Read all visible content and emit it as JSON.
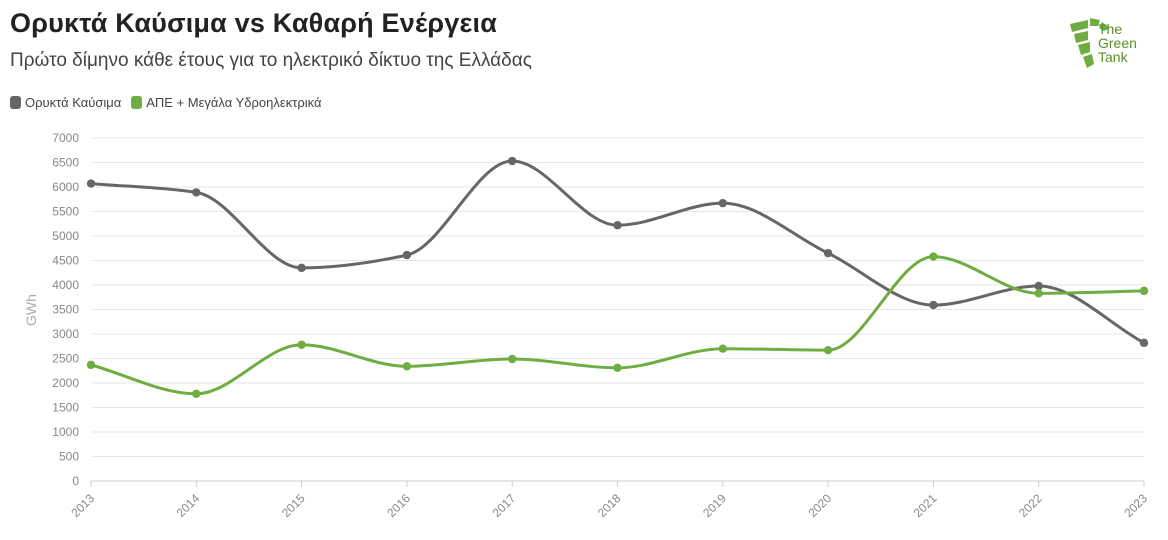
{
  "header": {
    "title": "Ορυκτά Καύσιμα vs Καθαρή Ενέργεια",
    "subtitle": "Πρώτο δίμηνο κάθε έτους για το ηλεκτρικό δίκτυο της Ελλάδας"
  },
  "logo": {
    "line1": "The",
    "line2": "Green",
    "line3": "Tank"
  },
  "colors": {
    "fossil": "#666666",
    "renewables": "#6fad43",
    "grid": "#e6e6e6",
    "axis_text": "#888888"
  },
  "chart_data": {
    "type": "line",
    "title": "Ορυκτά Καύσιμα vs Καθαρή Ενέργεια",
    "subtitle": "Πρώτο δίμηνο κάθε έτους για το ηλεκτρικό δίκτυο της Ελλάδας",
    "xlabel": "",
    "ylabel": "GWh",
    "x": [
      "2013",
      "2014",
      "2015",
      "2016",
      "2017",
      "2018",
      "2019",
      "2020",
      "2021",
      "2022",
      "2023"
    ],
    "ylim": [
      0,
      7000
    ],
    "yticks": [
      0,
      500,
      1000,
      1500,
      2000,
      2500,
      3000,
      3500,
      4000,
      4500,
      5000,
      5500,
      6000,
      6500,
      7000
    ],
    "grid": true,
    "legend": "top-left",
    "series": [
      {
        "name": "Ορυκτά Καύσιμα",
        "color": "#666666",
        "values": [
          6070,
          5890,
          4350,
          4610,
          6530,
          5220,
          5670,
          4650,
          3590,
          3980,
          2820
        ]
      },
      {
        "name": "ΑΠΕ + Μεγάλα Υδροηλεκτρικά",
        "color": "#6fad43",
        "values": [
          2370,
          1780,
          2780,
          2340,
          2490,
          2310,
          2700,
          2670,
          4580,
          3830,
          3880
        ]
      }
    ]
  }
}
